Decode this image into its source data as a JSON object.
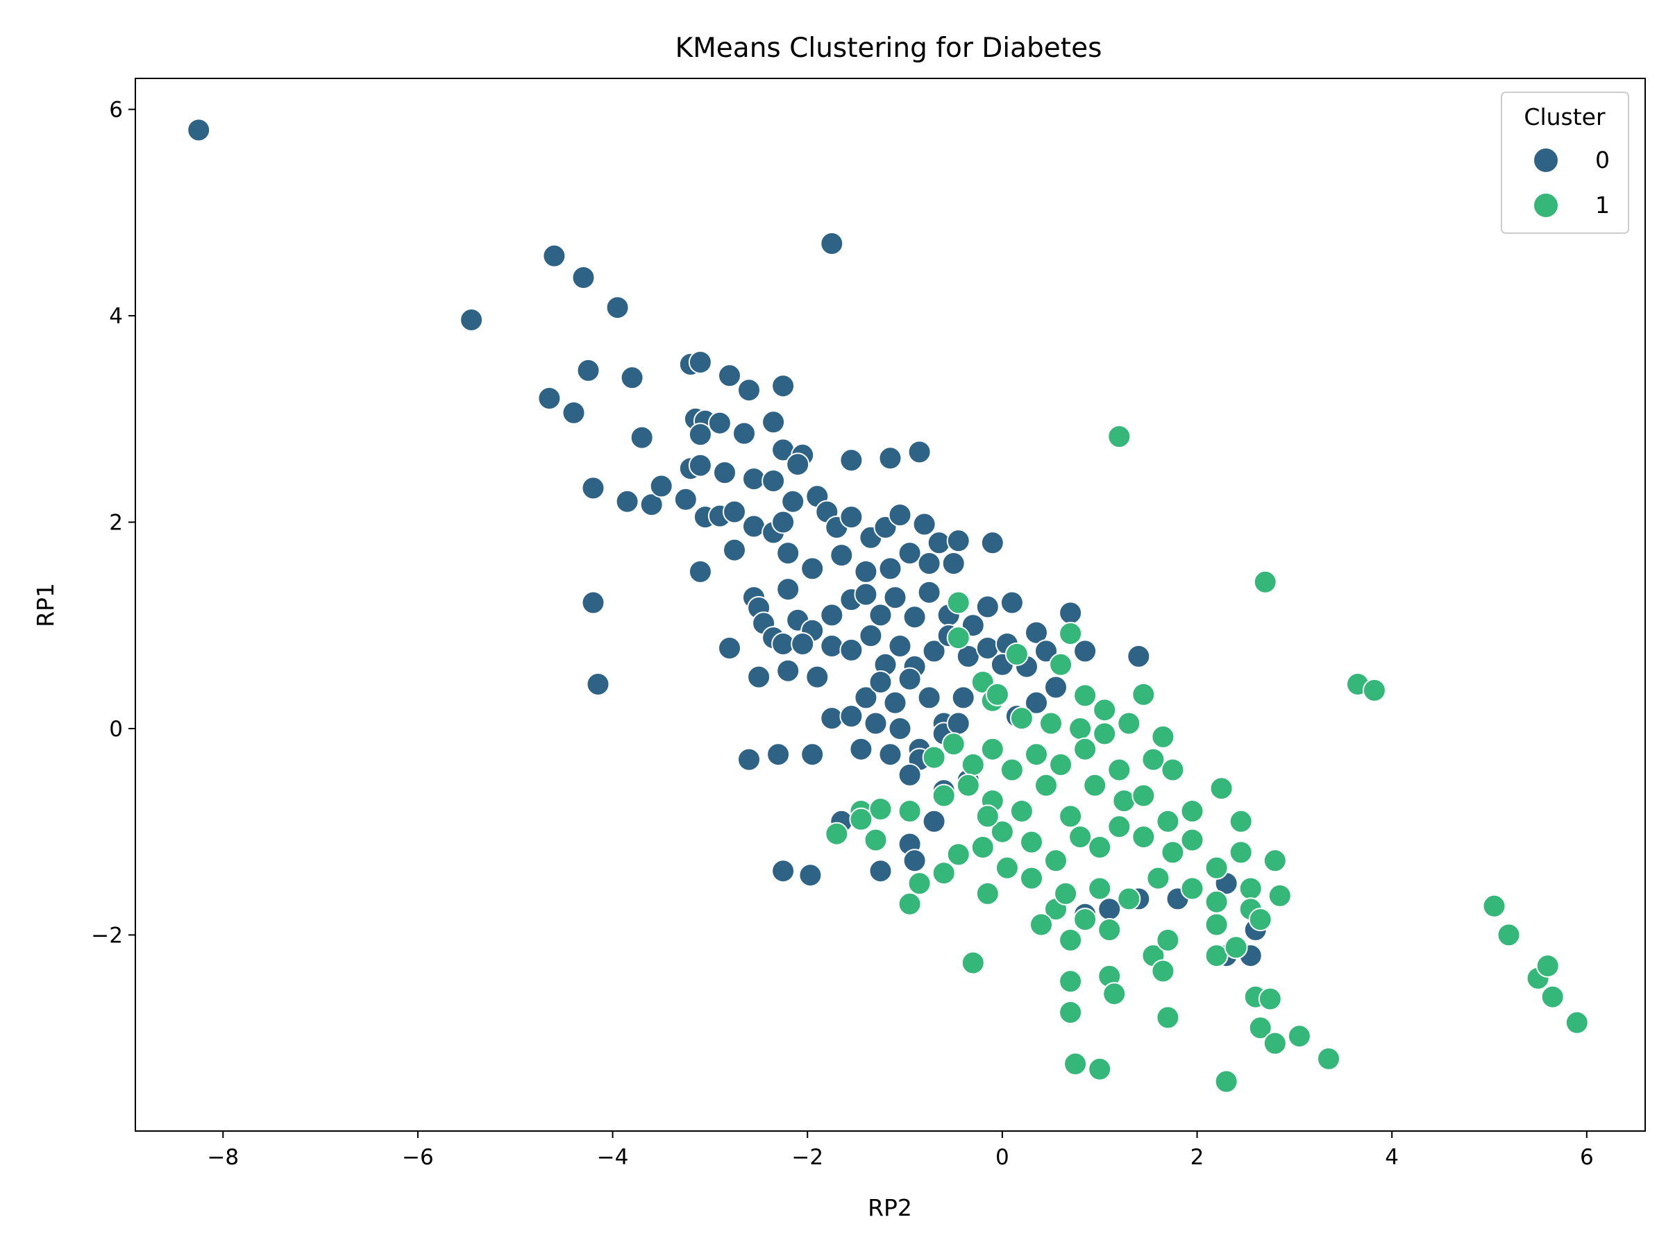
{
  "chart_data": {
    "type": "scatter",
    "title": "KMeans Clustering for Diabetes",
    "xlabel": "RP2",
    "ylabel": "RP1",
    "xlim": [
      -8.9,
      6.6
    ],
    "ylim": [
      -3.9,
      6.3
    ],
    "xticks": [
      -8,
      -6,
      -4,
      -2,
      0,
      2,
      4,
      6
    ],
    "yticks": [
      -2,
      0,
      2,
      4,
      6
    ],
    "xtick_labels": [
      "−8",
      "−6",
      "−4",
      "−2",
      "0",
      "2",
      "4",
      "6"
    ],
    "ytick_labels": [
      "−2",
      "0",
      "2",
      "4",
      "6"
    ],
    "grid": false,
    "legend": {
      "title": "Cluster",
      "placement": "top-right"
    },
    "series": [
      {
        "name": "0",
        "color": "#2e6386",
        "points": [
          [
            -8.25,
            5.8
          ],
          [
            -4.6,
            4.58
          ],
          [
            -4.3,
            4.37
          ],
          [
            -5.45,
            3.96
          ],
          [
            -3.95,
            4.08
          ],
          [
            -1.75,
            4.7
          ],
          [
            -4.25,
            3.47
          ],
          [
            -4.65,
            3.2
          ],
          [
            -4.4,
            3.06
          ],
          [
            -3.8,
            3.4
          ],
          [
            -3.7,
            2.82
          ],
          [
            -3.2,
            3.53
          ],
          [
            -3.1,
            3.55
          ],
          [
            -2.8,
            3.42
          ],
          [
            -2.6,
            3.28
          ],
          [
            -2.25,
            3.32
          ],
          [
            -3.15,
            3.0
          ],
          [
            -3.05,
            2.98
          ],
          [
            -2.9,
            2.96
          ],
          [
            -3.1,
            2.85
          ],
          [
            -2.65,
            2.86
          ],
          [
            -2.35,
            2.97
          ],
          [
            -2.25,
            2.7
          ],
          [
            -2.05,
            2.65
          ],
          [
            -2.1,
            2.56
          ],
          [
            -3.2,
            2.52
          ],
          [
            -3.1,
            2.55
          ],
          [
            -2.85,
            2.48
          ],
          [
            -2.55,
            2.42
          ],
          [
            -2.35,
            2.4
          ],
          [
            -1.55,
            2.6
          ],
          [
            -1.15,
            2.62
          ],
          [
            -0.85,
            2.68
          ],
          [
            -4.2,
            2.33
          ],
          [
            -3.85,
            2.2
          ],
          [
            -3.6,
            2.17
          ],
          [
            -3.5,
            2.35
          ],
          [
            -3.25,
            2.22
          ],
          [
            -3.05,
            2.05
          ],
          [
            -2.9,
            2.06
          ],
          [
            -2.75,
            2.1
          ],
          [
            -2.55,
            1.96
          ],
          [
            -2.35,
            1.9
          ],
          [
            -2.25,
            2.0
          ],
          [
            -2.15,
            2.2
          ],
          [
            -1.9,
            2.25
          ],
          [
            -1.8,
            2.1
          ],
          [
            -1.7,
            1.95
          ],
          [
            -1.55,
            2.05
          ],
          [
            -1.35,
            1.85
          ],
          [
            -1.2,
            1.95
          ],
          [
            -1.05,
            2.07
          ],
          [
            -0.8,
            1.98
          ],
          [
            -0.65,
            1.8
          ],
          [
            -0.45,
            1.82
          ],
          [
            -0.1,
            1.8
          ],
          [
            -2.75,
            1.73
          ],
          [
            -2.2,
            1.7
          ],
          [
            -1.95,
            1.55
          ],
          [
            -1.65,
            1.68
          ],
          [
            -1.4,
            1.52
          ],
          [
            -1.15,
            1.55
          ],
          [
            -0.95,
            1.7
          ],
          [
            -0.75,
            1.6
          ],
          [
            -0.5,
            1.6
          ],
          [
            -3.1,
            1.52
          ],
          [
            -2.55,
            1.27
          ],
          [
            -2.5,
            1.17
          ],
          [
            -2.45,
            1.02
          ],
          [
            -2.35,
            0.88
          ],
          [
            -2.2,
            1.35
          ],
          [
            -2.1,
            1.05
          ],
          [
            -1.95,
            0.95
          ],
          [
            -1.75,
            1.1
          ],
          [
            -1.55,
            1.25
          ],
          [
            -1.4,
            1.3
          ],
          [
            -1.25,
            1.1
          ],
          [
            -1.1,
            1.27
          ],
          [
            -0.9,
            1.08
          ],
          [
            -0.75,
            1.32
          ],
          [
            -0.55,
            1.1
          ],
          [
            -0.3,
            1.0
          ],
          [
            -0.15,
            1.18
          ],
          [
            0.1,
            1.22
          ],
          [
            0.35,
            0.93
          ],
          [
            0.7,
            1.12
          ],
          [
            0.85,
            0.75
          ],
          [
            1.4,
            0.7
          ],
          [
            -4.2,
            1.22
          ],
          [
            -4.15,
            0.43
          ],
          [
            -2.8,
            0.78
          ],
          [
            -2.5,
            0.5
          ],
          [
            -2.25,
            0.82
          ],
          [
            -2.2,
            0.56
          ],
          [
            -2.05,
            0.82
          ],
          [
            -1.9,
            0.5
          ],
          [
            -1.75,
            0.8
          ],
          [
            -1.55,
            0.76
          ],
          [
            -1.35,
            0.9
          ],
          [
            -1.2,
            0.62
          ],
          [
            -1.05,
            0.8
          ],
          [
            -0.9,
            0.6
          ],
          [
            -0.7,
            0.75
          ],
          [
            -0.55,
            0.9
          ],
          [
            -0.35,
            0.7
          ],
          [
            -0.15,
            0.78
          ],
          [
            0.05,
            0.82
          ],
          [
            0.25,
            0.6
          ],
          [
            0.45,
            0.75
          ],
          [
            0.55,
            0.4
          ],
          [
            -1.75,
            0.1
          ],
          [
            -1.55,
            0.12
          ],
          [
            -1.4,
            0.3
          ],
          [
            -1.25,
            0.45
          ],
          [
            -1.1,
            0.25
          ],
          [
            -0.95,
            0.48
          ],
          [
            -0.75,
            0.3
          ],
          [
            -0.6,
            0.05
          ],
          [
            -0.4,
            0.3
          ],
          [
            -0.2,
            0.45
          ],
          [
            0.0,
            0.62
          ],
          [
            0.15,
            0.12
          ],
          [
            0.35,
            0.25
          ],
          [
            -1.3,
            0.05
          ],
          [
            -1.05,
            0.0
          ],
          [
            -0.85,
            -0.2
          ],
          [
            -0.6,
            -0.05
          ],
          [
            -0.45,
            0.05
          ],
          [
            -2.6,
            -0.3
          ],
          [
            -2.3,
            -0.25
          ],
          [
            -1.95,
            -0.25
          ],
          [
            -1.45,
            -0.2
          ],
          [
            -1.15,
            -0.25
          ],
          [
            -0.85,
            -0.3
          ],
          [
            -0.6,
            -0.6
          ],
          [
            -0.35,
            -0.5
          ],
          [
            -0.95,
            -0.45
          ],
          [
            -0.7,
            -0.9
          ],
          [
            -1.65,
            -0.9
          ],
          [
            -2.25,
            -1.38
          ],
          [
            -1.97,
            -1.42
          ],
          [
            -1.25,
            -1.38
          ],
          [
            -0.95,
            -1.12
          ],
          [
            -0.9,
            -1.28
          ],
          [
            1.1,
            -1.75
          ],
          [
            1.4,
            -1.65
          ],
          [
            1.8,
            -1.65
          ],
          [
            2.3,
            -1.5
          ],
          [
            2.6,
            -1.95
          ],
          [
            2.55,
            -2.2
          ],
          [
            2.3,
            -2.2
          ],
          [
            0.85,
            -1.8
          ]
        ]
      },
      {
        "name": "1",
        "color": "#35b779",
        "points": [
          [
            1.2,
            2.83
          ],
          [
            2.7,
            1.42
          ],
          [
            3.65,
            0.43
          ],
          [
            3.82,
            0.37
          ],
          [
            0.7,
            0.92
          ],
          [
            0.6,
            0.62
          ],
          [
            1.45,
            0.33
          ],
          [
            1.05,
            0.18
          ],
          [
            -0.45,
            1.22
          ],
          [
            -0.45,
            0.88
          ],
          [
            -0.2,
            0.45
          ],
          [
            -0.1,
            0.27
          ],
          [
            0.2,
            0.1
          ],
          [
            0.5,
            0.05
          ],
          [
            0.8,
            0.0
          ],
          [
            1.05,
            -0.05
          ],
          [
            1.3,
            0.05
          ],
          [
            1.65,
            -0.08
          ],
          [
            -0.7,
            -0.28
          ],
          [
            -0.5,
            -0.15
          ],
          [
            -0.3,
            -0.35
          ],
          [
            -0.1,
            -0.2
          ],
          [
            0.1,
            -0.4
          ],
          [
            0.35,
            -0.25
          ],
          [
            0.6,
            -0.35
          ],
          [
            0.85,
            -0.2
          ],
          [
            1.2,
            -0.4
          ],
          [
            1.55,
            -0.3
          ],
          [
            1.75,
            -0.4
          ],
          [
            -0.95,
            -0.8
          ],
          [
            -0.6,
            -0.65
          ],
          [
            -0.35,
            -0.55
          ],
          [
            -0.1,
            -0.7
          ],
          [
            0.2,
            -0.8
          ],
          [
            0.45,
            -0.55
          ],
          [
            0.7,
            -0.85
          ],
          [
            0.95,
            -0.55
          ],
          [
            1.25,
            -0.7
          ],
          [
            1.45,
            -0.65
          ],
          [
            1.7,
            -0.9
          ],
          [
            1.95,
            -0.8
          ],
          [
            2.25,
            -0.58
          ],
          [
            2.45,
            -0.9
          ],
          [
            -1.45,
            -0.8
          ],
          [
            -1.25,
            -0.78
          ],
          [
            -1.45,
            -0.88
          ],
          [
            -1.7,
            -1.02
          ],
          [
            -1.3,
            -1.08
          ],
          [
            -0.6,
            -1.4
          ],
          [
            -0.45,
            -1.22
          ],
          [
            -0.2,
            -1.15
          ],
          [
            0.0,
            -1.0
          ],
          [
            0.3,
            -1.1
          ],
          [
            0.55,
            -1.28
          ],
          [
            0.8,
            -1.05
          ],
          [
            1.0,
            -1.15
          ],
          [
            1.2,
            -0.95
          ],
          [
            1.45,
            -1.05
          ],
          [
            1.75,
            -1.2
          ],
          [
            1.95,
            -1.08
          ],
          [
            2.2,
            -1.35
          ],
          [
            2.45,
            -1.2
          ],
          [
            2.8,
            -1.28
          ],
          [
            -0.85,
            -1.5
          ],
          [
            -0.95,
            -1.7
          ],
          [
            -0.3,
            -2.27
          ],
          [
            0.3,
            -1.45
          ],
          [
            0.55,
            -1.75
          ],
          [
            0.65,
            -1.6
          ],
          [
            0.85,
            -1.85
          ],
          [
            1.0,
            -1.55
          ],
          [
            1.3,
            -1.65
          ],
          [
            1.6,
            -1.45
          ],
          [
            1.95,
            -1.55
          ],
          [
            2.2,
            -1.68
          ],
          [
            2.55,
            -1.55
          ],
          [
            2.85,
            -1.62
          ],
          [
            0.4,
            -1.9
          ],
          [
            0.7,
            -2.05
          ],
          [
            1.1,
            -1.95
          ],
          [
            1.55,
            -2.2
          ],
          [
            1.7,
            -2.05
          ],
          [
            2.2,
            -1.9
          ],
          [
            2.55,
            -1.75
          ],
          [
            2.65,
            -1.85
          ],
          [
            1.65,
            -2.35
          ],
          [
            1.1,
            -2.4
          ],
          [
            0.7,
            -2.45
          ],
          [
            1.15,
            -2.57
          ],
          [
            2.2,
            -2.2
          ],
          [
            2.4,
            -2.12
          ],
          [
            2.6,
            -2.6
          ],
          [
            2.75,
            -2.62
          ],
          [
            0.7,
            -2.75
          ],
          [
            1.7,
            -2.8
          ],
          [
            2.65,
            -2.9
          ],
          [
            2.8,
            -3.05
          ],
          [
            3.05,
            -2.98
          ],
          [
            3.35,
            -3.2
          ],
          [
            0.75,
            -3.25
          ],
          [
            1.0,
            -3.3
          ],
          [
            2.3,
            -3.42
          ],
          [
            5.05,
            -1.72
          ],
          [
            5.2,
            -2.0
          ],
          [
            5.5,
            -2.42
          ],
          [
            5.6,
            -2.3
          ],
          [
            5.65,
            -2.6
          ],
          [
            5.9,
            -2.85
          ],
          [
            0.15,
            0.72
          ],
          [
            -0.05,
            0.33
          ],
          [
            0.85,
            0.32
          ],
          [
            -0.15,
            -0.85
          ],
          [
            0.05,
            -1.35
          ],
          [
            -0.15,
            -1.6
          ]
        ]
      }
    ]
  }
}
